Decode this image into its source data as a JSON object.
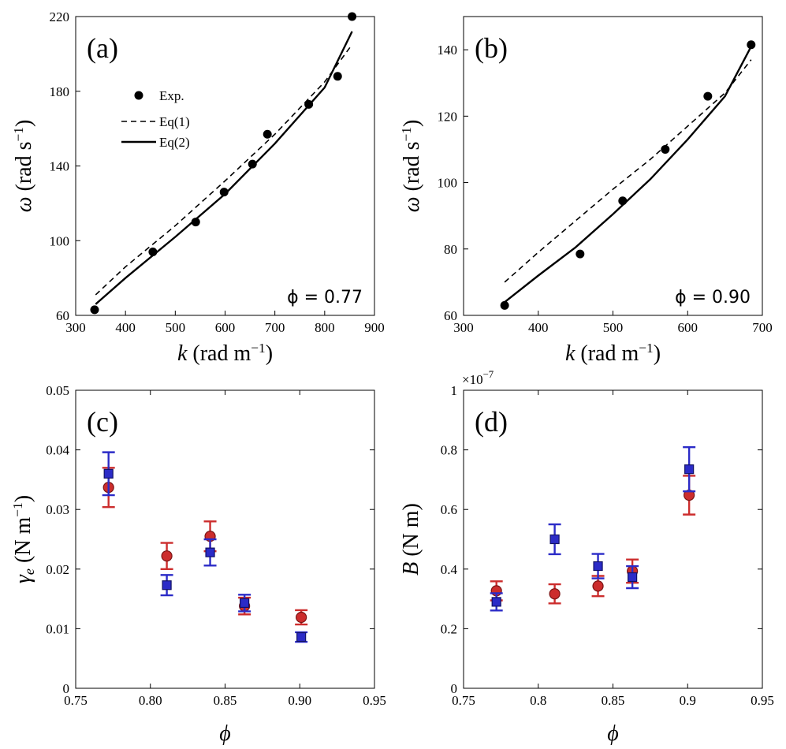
{
  "chart_data": [
    {
      "id": "a",
      "type": "scatter",
      "panel_label": "(a)",
      "xlabel": "k (rad m⁻¹)",
      "ylabel": "ω (rad s⁻¹)",
      "xlim": [
        300,
        900
      ],
      "ylim": [
        60,
        220
      ],
      "xticks": [
        "300",
        "400",
        "500",
        "600",
        "700",
        "800",
        "900"
      ],
      "yticks": [
        "60",
        "100",
        "140",
        "180",
        "220"
      ],
      "annotation": "ϕ = 0.77",
      "legend": {
        "position": "top-left",
        "entries": [
          "Exp.",
          "Eq(1)",
          "Eq(2)"
        ]
      },
      "series": [
        {
          "name": "Exp.",
          "style": "points",
          "x": [
            338,
            455,
            541,
            598,
            655,
            685,
            768,
            826,
            855
          ],
          "y": [
            63,
            94,
            110,
            126,
            141,
            157,
            173,
            188,
            220
          ]
        },
        {
          "name": "Eq(1)",
          "style": "dashed",
          "x": [
            340,
            400,
            500,
            600,
            700,
            800,
            855
          ],
          "y": [
            71,
            86,
            108,
            132,
            157,
            185,
            205
          ]
        },
        {
          "name": "Eq(2)",
          "style": "solid",
          "x": [
            340,
            400,
            500,
            600,
            700,
            800,
            855
          ],
          "y": [
            66,
            80,
            102,
            125,
            152,
            182,
            212
          ]
        }
      ]
    },
    {
      "id": "b",
      "type": "scatter",
      "panel_label": "(b)",
      "xlabel": "k (rad m⁻¹)",
      "ylabel": "ω (rad s⁻¹)",
      "xlim": [
        300,
        700
      ],
      "ylim": [
        60,
        150
      ],
      "xticks": [
        "300",
        "400",
        "500",
        "600",
        "700"
      ],
      "yticks": [
        "60",
        "80",
        "100",
        "120",
        "140"
      ],
      "annotation": "ϕ = 0.90",
      "series": [
        {
          "name": "Exp.",
          "style": "points",
          "x": [
            355,
            456,
            513,
            570,
            627,
            685
          ],
          "y": [
            63,
            78.5,
            94.5,
            110,
            126,
            141.5
          ]
        },
        {
          "name": "Eq(1)",
          "style": "dashed",
          "x": [
            355,
            400,
            450,
            500,
            550,
            600,
            650,
            685
          ],
          "y": [
            70,
            79,
            88.5,
            98,
            107,
            117,
            127,
            137
          ]
        },
        {
          "name": "Eq(2)",
          "style": "solid",
          "x": [
            355,
            400,
            450,
            500,
            550,
            600,
            650,
            685
          ],
          "y": [
            64,
            72,
            80.5,
            90.5,
            101,
            113,
            126,
            141
          ]
        }
      ]
    },
    {
      "id": "c",
      "type": "scatter",
      "panel_label": "(c)",
      "xlabel": "ϕ",
      "ylabel": "γ_e (N m⁻¹)",
      "xlim": [
        0.75,
        0.95
      ],
      "ylim": [
        0,
        0.05
      ],
      "xticks": [
        "0.75",
        "0.80",
        "0.85",
        "0.90",
        "0.95"
      ],
      "yticks": [
        "0",
        "0.01",
        "0.02",
        "0.03",
        "0.04",
        "0.05"
      ],
      "series": [
        {
          "color": "#cc2d2d",
          "marker": "circle",
          "x": [
            0.772,
            0.811,
            0.84,
            0.863,
            0.901
          ],
          "y": [
            0.0337,
            0.0222,
            0.0255,
            0.0138,
            0.0119
          ],
          "err": [
            0.0033,
            0.0022,
            0.0025,
            0.0014,
            0.0012
          ]
        },
        {
          "color": "#2b2bc7",
          "marker": "square",
          "x": [
            0.772,
            0.811,
            0.84,
            0.863,
            0.901
          ],
          "y": [
            0.036,
            0.0173,
            0.0228,
            0.0143,
            0.0086
          ],
          "err": [
            0.0036,
            0.0017,
            0.0022,
            0.0014,
            0.0008
          ]
        }
      ]
    },
    {
      "id": "d",
      "type": "scatter",
      "panel_label": "(d)",
      "xlabel": "ϕ",
      "ylabel": "B (N m)",
      "multiplier": "×10⁻⁷",
      "xlim": [
        0.75,
        0.95
      ],
      "ylim": [
        0,
        1
      ],
      "xticks": [
        "0.75",
        "0.8",
        "0.85",
        "0.9",
        "0.95"
      ],
      "yticks": [
        "0",
        "0.2",
        "0.4",
        "0.6",
        "0.8",
        "1"
      ],
      "series": [
        {
          "color": "#cc2d2d",
          "marker": "circle",
          "x": [
            0.772,
            0.811,
            0.84,
            0.863,
            0.901
          ],
          "y": [
            0.327,
            0.317,
            0.343,
            0.393,
            0.648
          ],
          "err": [
            0.032,
            0.032,
            0.034,
            0.039,
            0.065
          ]
        },
        {
          "color": "#2b2bc7",
          "marker": "square",
          "x": [
            0.772,
            0.811,
            0.84,
            0.863,
            0.901
          ],
          "y": [
            0.29,
            0.5,
            0.41,
            0.373,
            0.735
          ],
          "err": [
            0.029,
            0.05,
            0.041,
            0.037,
            0.074
          ]
        }
      ]
    }
  ]
}
